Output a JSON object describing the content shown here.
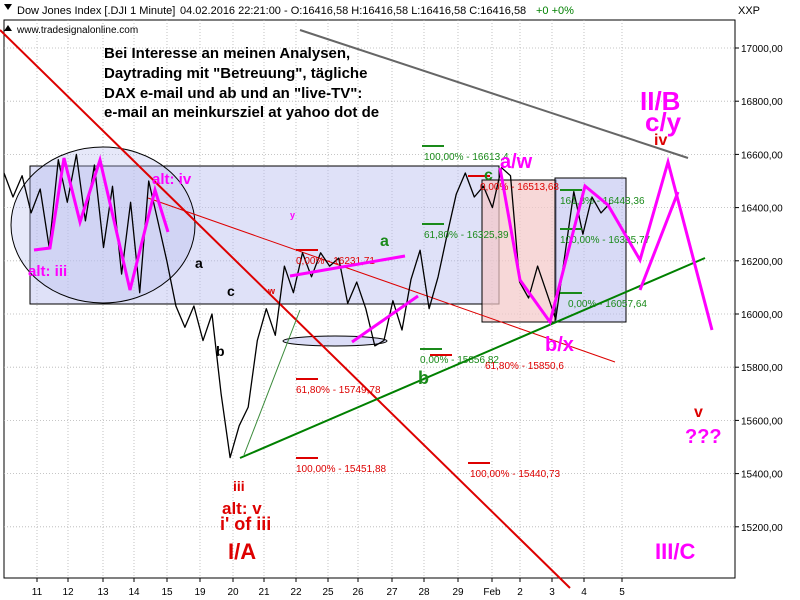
{
  "header": {
    "symbol_text": "Dow Jones Index [.DJI  1 Minute]",
    "ohlc_text": "04.02.2016 22:21:00 - O:16416,58 H:16416,58 L:16416,58 C:16416,58",
    "change_text": "+0 +0%",
    "website": "www.tradesignalonline.com",
    "axis_symbol": "XXP"
  },
  "promo": {
    "line1": "Bei Interesse an meinen Analysen,",
    "line2": "Daytrading mit \"Betreuung\",  tägliche",
    "line3": "DAX e-mail und ab und an \"live-TV\":",
    "line4": "e-mail an    meinkursziel at yahoo dot de"
  },
  "colors": {
    "price": "#000000",
    "magenta": "#ff00ff",
    "red": "#dd0000",
    "green": "#008000",
    "darkgreen": "#2e8b2e",
    "box_blue": "#b8bcef",
    "box_pink": "#f4c8c8"
  },
  "chart_data": {
    "type": "line",
    "title": "Dow Jones Index [.DJI  1 Minute]",
    "xlabel": "",
    "ylabel": "",
    "ylim": [
      15050,
      17150
    ],
    "grid": true,
    "yticks": [
      15200,
      15400,
      15600,
      15800,
      16000,
      16200,
      16400,
      16600,
      16800,
      17000
    ],
    "ytick_labels": [
      "15200,00",
      "15400,00",
      "15600,00",
      "15800,00",
      "16000,00",
      "16200,00",
      "16400,00",
      "16600,00",
      "16800,00",
      "17000,00"
    ],
    "xtick_labels": [
      "11",
      "12",
      "13",
      "14",
      "15",
      "19",
      "20",
      "21",
      "22",
      "25",
      "26",
      "27",
      "28",
      "29",
      "Feb",
      "2",
      "3",
      "4",
      "5"
    ],
    "series": [
      {
        "values": [
          16530,
          16440,
          16520,
          16380,
          16470,
          16250,
          16580,
          16420,
          16600,
          16350,
          16560,
          16250,
          16480,
          16150,
          16420,
          16080,
          16500,
          16350,
          16200,
          16030,
          15950,
          16030,
          15900,
          16000,
          15700,
          15460,
          15580,
          15650,
          15900,
          16020,
          15920,
          16180,
          16080,
          16230,
          16140,
          16230,
          16180,
          16210,
          16040,
          16120,
          16020,
          15880,
          15900,
          16050,
          15940,
          16130,
          16240,
          16020,
          16140,
          16300,
          16450,
          16530,
          16440,
          16480,
          16400,
          16550,
          16520,
          16120,
          16060,
          16180,
          16080,
          15980,
          16220,
          16460,
          16300,
          16440,
          16380,
          16416
        ]
      }
    ],
    "fib_levels": [
      {
        "label": "100,00% - 16613,4",
        "value": 16613.4,
        "color": "green"
      },
      {
        "label": "0,00% - 16513,68",
        "value": 16513.68,
        "color": "red"
      },
      {
        "label": "61,80% - 16325,39",
        "value": 16325.39,
        "color": "green"
      },
      {
        "label": "0,00% - 16231,71",
        "value": 16231.71,
        "color": "red"
      },
      {
        "label": "161,8% - 16443,36",
        "value": 16443.36,
        "color": "green"
      },
      {
        "label": "100,00% - 16305,77",
        "value": 16305.77,
        "color": "green"
      },
      {
        "label": "0,00% - 16057,64",
        "value": 16057.64,
        "color": "green"
      },
      {
        "label": "0,00% - 15856,82",
        "value": 15856.82,
        "color": "green"
      },
      {
        "label": "61,80% - 15850,6",
        "value": 15850.6,
        "color": "red"
      },
      {
        "label": "61,80% - 15749,78",
        "value": 15749.78,
        "color": "red"
      },
      {
        "label": "100,00% - 15451,88",
        "value": 15451.88,
        "color": "red"
      },
      {
        "label": "100,00% - 15440,73",
        "value": 15440.73,
        "color": "red"
      }
    ],
    "wave_labels": [
      {
        "text": "alt: iv",
        "color": "magenta"
      },
      {
        "text": "alt: iii",
        "color": "magenta"
      },
      {
        "text": "a",
        "color": "black"
      },
      {
        "text": "b",
        "color": "black"
      },
      {
        "text": "c",
        "color": "black"
      },
      {
        "text": "w",
        "color": "red"
      },
      {
        "text": "y",
        "color": "magenta"
      },
      {
        "text": "a",
        "color": "green"
      },
      {
        "text": "b",
        "color": "green"
      },
      {
        "text": "c",
        "color": "green"
      },
      {
        "text": "a/w",
        "color": "magenta"
      },
      {
        "text": "b/x",
        "color": "magenta"
      },
      {
        "text": "II/B",
        "color": "magenta"
      },
      {
        "text": "c/y",
        "color": "magenta"
      },
      {
        "text": "iv",
        "color": "red"
      },
      {
        "text": "v",
        "color": "red"
      },
      {
        "text": "???",
        "color": "magenta"
      },
      {
        "text": "iii",
        "color": "red"
      },
      {
        "text": "alt: v",
        "color": "red"
      },
      {
        "text": "i' of iii",
        "color": "red"
      },
      {
        "text": "I/A",
        "color": "red"
      },
      {
        "text": "III/C",
        "color": "magenta"
      }
    ]
  }
}
